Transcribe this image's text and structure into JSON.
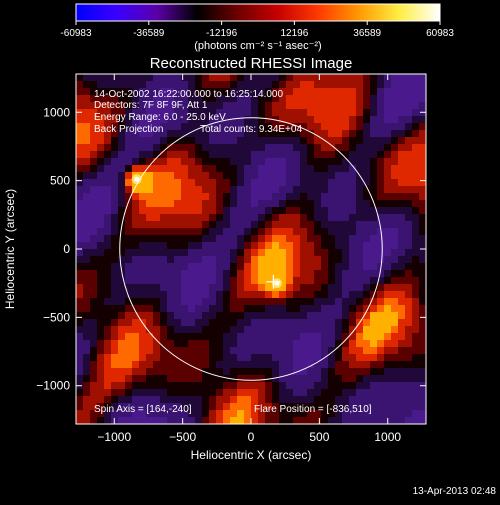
{
  "colorbar": {
    "ticks": [
      "-60983",
      "-36589",
      "-12196",
      "12196",
      "36589",
      "60983"
    ],
    "units_label": "(photons cm⁻² s⁻¹ asec⁻²)",
    "range": [
      -60983,
      60983
    ],
    "colors": [
      "#0000ff",
      "#3a00ff",
      "#5a00a8",
      "#000000",
      "#6e0000",
      "#c80000",
      "#ff3a00",
      "#ff9a00",
      "#ffee44",
      "#ffffff"
    ]
  },
  "chart_data": {
    "type": "heatmap",
    "title": "Reconstructed RHESSI Image",
    "xlabel": "Heliocentric X (arcsec)",
    "ylabel": "Heliocentric Y (arcsec)",
    "xlim": [
      -1280,
      1280
    ],
    "ylim": [
      -1280,
      1280
    ],
    "xticks": [
      -1000,
      -500,
      0,
      500,
      1000
    ],
    "yticks": [
      -1000,
      -500,
      0,
      500,
      1000
    ],
    "tick_labels_x": [
      "−1000",
      "−500",
      "0",
      "500",
      "1000"
    ],
    "tick_labels_y": [
      "−1000",
      "−500",
      "0",
      "500",
      "1000"
    ],
    "solar_disk_radius_arcsec": 960,
    "crosshair_arcsec": [
      164,
      -240
    ],
    "bright_sources": [
      {
        "x": -836,
        "y": 510,
        "intensity": 60983
      },
      {
        "x": 190,
        "y": -250,
        "intensity": 50000
      }
    ],
    "annotations": {
      "time_range": "14-Oct-2002 16:22:00.000 to 16:25:14.000",
      "detectors": "Detectors: 7F 8F 9F, Att 1",
      "energy": "Energy Range: 6.0 - 25.0 keV",
      "method": "Back Projection",
      "total_counts": "Total counts: 9.34E+04",
      "spin_axis": "Spin Axis = [164,-240]",
      "flare_position": "Flare Position = [-836,510]"
    }
  },
  "footer": {
    "timestamp": "13-Apr-2013 02:48"
  }
}
